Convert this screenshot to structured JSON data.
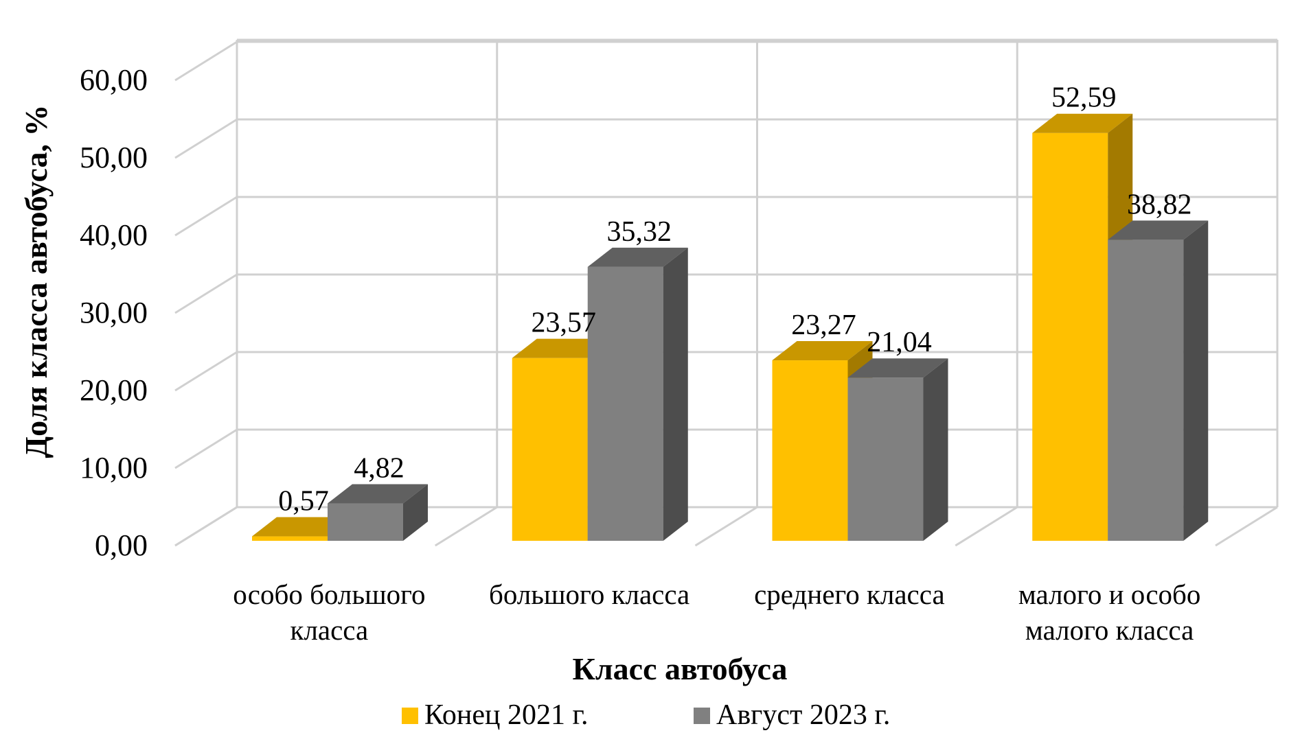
{
  "chart_data": {
    "type": "bar",
    "xlabel": "Класс автобуса",
    "ylabel": "Доля класса автобуса, %",
    "ylim": [
      0,
      60
    ],
    "yticks": [
      "0,00",
      "10,00",
      "20,00",
      "30,00",
      "40,00",
      "50,00",
      "60,00"
    ],
    "grid": true,
    "legend_position": "bottom",
    "categories": [
      [
        "особо большого",
        "класса"
      ],
      [
        "большого класса"
      ],
      [
        "среднего класса"
      ],
      [
        "малого и особо",
        "малого класса"
      ]
    ],
    "series": [
      {
        "name": "Конец 2021 г.",
        "color": "#FFC000",
        "top_color": "#C99700",
        "side_color": "#A37A00",
        "values": [
          0.57,
          23.57,
          23.27,
          52.59
        ],
        "labels": [
          "0,57",
          "23,57",
          "23,27",
          "52,59"
        ]
      },
      {
        "name": "Август 2023 г.",
        "color": "#808080",
        "top_color": "#606060",
        "side_color": "#4D4D4D",
        "values": [
          4.82,
          35.32,
          21.04,
          38.82
        ],
        "labels": [
          "4,82",
          "35,32",
          "21,04",
          "38,82"
        ]
      }
    ]
  }
}
